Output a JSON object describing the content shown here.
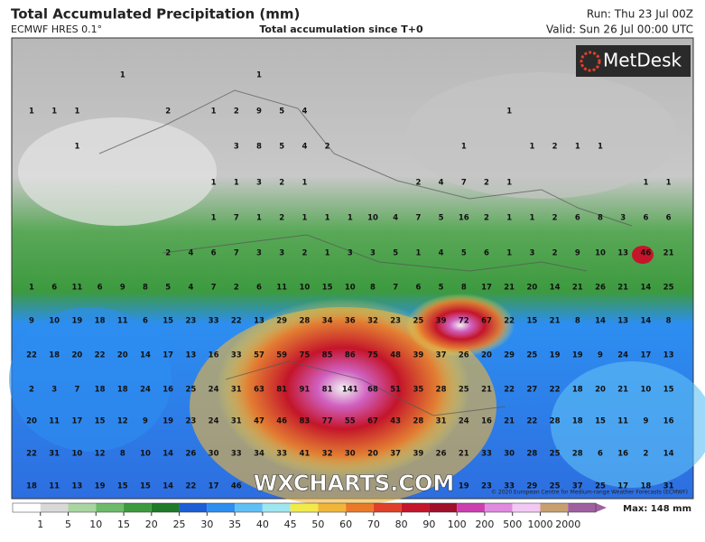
{
  "header": {
    "title": "Total Accumulated Precipitation (mm)",
    "model": "ECMWF HRES 0.1°",
    "subtitle": "Total accumulation since T+0",
    "run": "Run: Thu 23 Jul 00Z",
    "valid": "Valid: Sun 26 Jul 00:00 UTC"
  },
  "logo": "MetDesk",
  "watermark": "WXCHARTS.COM",
  "credit": "© 2020 European Centre for Medium-range Weather Forecasts (ECMWF)",
  "map": {
    "rows": [
      [
        null,
        null,
        null,
        null,
        1,
        null,
        null,
        null,
        null,
        null,
        1,
        null,
        null,
        null,
        null,
        null,
        null,
        null,
        null,
        null,
        null,
        null,
        null,
        null,
        null,
        null,
        null,
        null,
        null
      ],
      [
        1,
        1,
        1,
        null,
        null,
        null,
        2,
        null,
        1,
        2,
        9,
        5,
        4,
        null,
        null,
        null,
        null,
        null,
        null,
        null,
        null,
        1,
        null,
        null,
        null,
        null,
        null,
        null,
        null
      ],
      [
        null,
        null,
        1,
        null,
        null,
        null,
        null,
        null,
        null,
        3,
        8,
        5,
        4,
        2,
        null,
        null,
        null,
        null,
        null,
        1,
        null,
        null,
        1,
        2,
        1,
        1,
        null,
        null,
        null
      ],
      [
        null,
        null,
        null,
        null,
        null,
        null,
        null,
        null,
        1,
        1,
        3,
        2,
        1,
        null,
        null,
        null,
        null,
        2,
        4,
        7,
        2,
        1,
        null,
        null,
        null,
        null,
        null,
        1,
        1
      ],
      [
        null,
        null,
        null,
        null,
        null,
        null,
        null,
        null,
        1,
        7,
        1,
        2,
        1,
        1,
        1,
        10,
        4,
        7,
        5,
        16,
        2,
        1,
        1,
        2,
        6,
        8,
        3,
        6,
        6
      ],
      [
        null,
        null,
        null,
        null,
        null,
        null,
        2,
        4,
        6,
        7,
        3,
        3,
        2,
        1,
        3,
        3,
        5,
        1,
        4,
        5,
        6,
        1,
        3,
        2,
        9,
        10,
        13,
        46,
        21
      ],
      [
        1,
        6,
        11,
        6,
        9,
        8,
        5,
        4,
        7,
        2,
        6,
        11,
        10,
        15,
        10,
        8,
        7,
        6,
        5,
        8,
        17,
        21,
        20,
        14,
        21,
        26,
        21,
        14,
        25
      ],
      [
        9,
        10,
        19,
        18,
        11,
        6,
        15,
        23,
        33,
        22,
        13,
        29,
        28,
        34,
        36,
        32,
        23,
        25,
        39,
        72,
        67,
        22,
        15,
        21,
        8,
        14,
        13,
        14,
        8
      ],
      [
        22,
        18,
        20,
        22,
        20,
        14,
        17,
        13,
        16,
        33,
        57,
        59,
        75,
        85,
        86,
        75,
        48,
        39,
        37,
        26,
        20,
        29,
        25,
        19,
        19,
        9,
        24,
        17,
        13
      ],
      [
        2,
        3,
        7,
        18,
        18,
        24,
        16,
        25,
        24,
        31,
        63,
        81,
        91,
        81,
        141,
        68,
        51,
        35,
        28,
        25,
        21,
        22,
        27,
        22,
        18,
        20,
        21,
        10,
        15
      ],
      [
        20,
        11,
        17,
        15,
        12,
        9,
        19,
        23,
        24,
        31,
        47,
        46,
        83,
        77,
        55,
        67,
        43,
        28,
        31,
        24,
        16,
        21,
        22,
        28,
        18,
        15,
        11,
        9,
        16
      ],
      [
        22,
        31,
        10,
        12,
        8,
        10,
        14,
        26,
        30,
        33,
        34,
        33,
        41,
        32,
        30,
        20,
        37,
        39,
        26,
        21,
        33,
        30,
        28,
        25,
        28,
        6,
        16,
        2,
        14
      ],
      [
        18,
        11,
        13,
        19,
        15,
        15,
        14,
        22,
        17,
        46,
        null,
        null,
        null,
        null,
        null,
        null,
        null,
        null,
        null,
        19,
        23,
        33,
        29,
        25,
        37,
        25,
        17,
        18,
        31
      ]
    ]
  },
  "colorbar": {
    "ticks": [
      1,
      5,
      10,
      15,
      20,
      25,
      30,
      35,
      40,
      45,
      50,
      60,
      70,
      80,
      90,
      100,
      200,
      500,
      1000,
      2000
    ],
    "colors": [
      "#ffffff",
      "#d9d9d9",
      "#a8d5a0",
      "#6dbb6a",
      "#3d9a3f",
      "#1f7a2a",
      "#1b5fd6",
      "#2d8ef0",
      "#5fc0f5",
      "#9ee6f0",
      "#f2ea4a",
      "#f0b63a",
      "#ea7a2a",
      "#e0402a",
      "#c4152a",
      "#a0102a",
      "#cc3fb0",
      "#e08ae0",
      "#f4c8f4",
      "#c8a070",
      "#a060a0"
    ],
    "max": "Max: 148 mm"
  }
}
